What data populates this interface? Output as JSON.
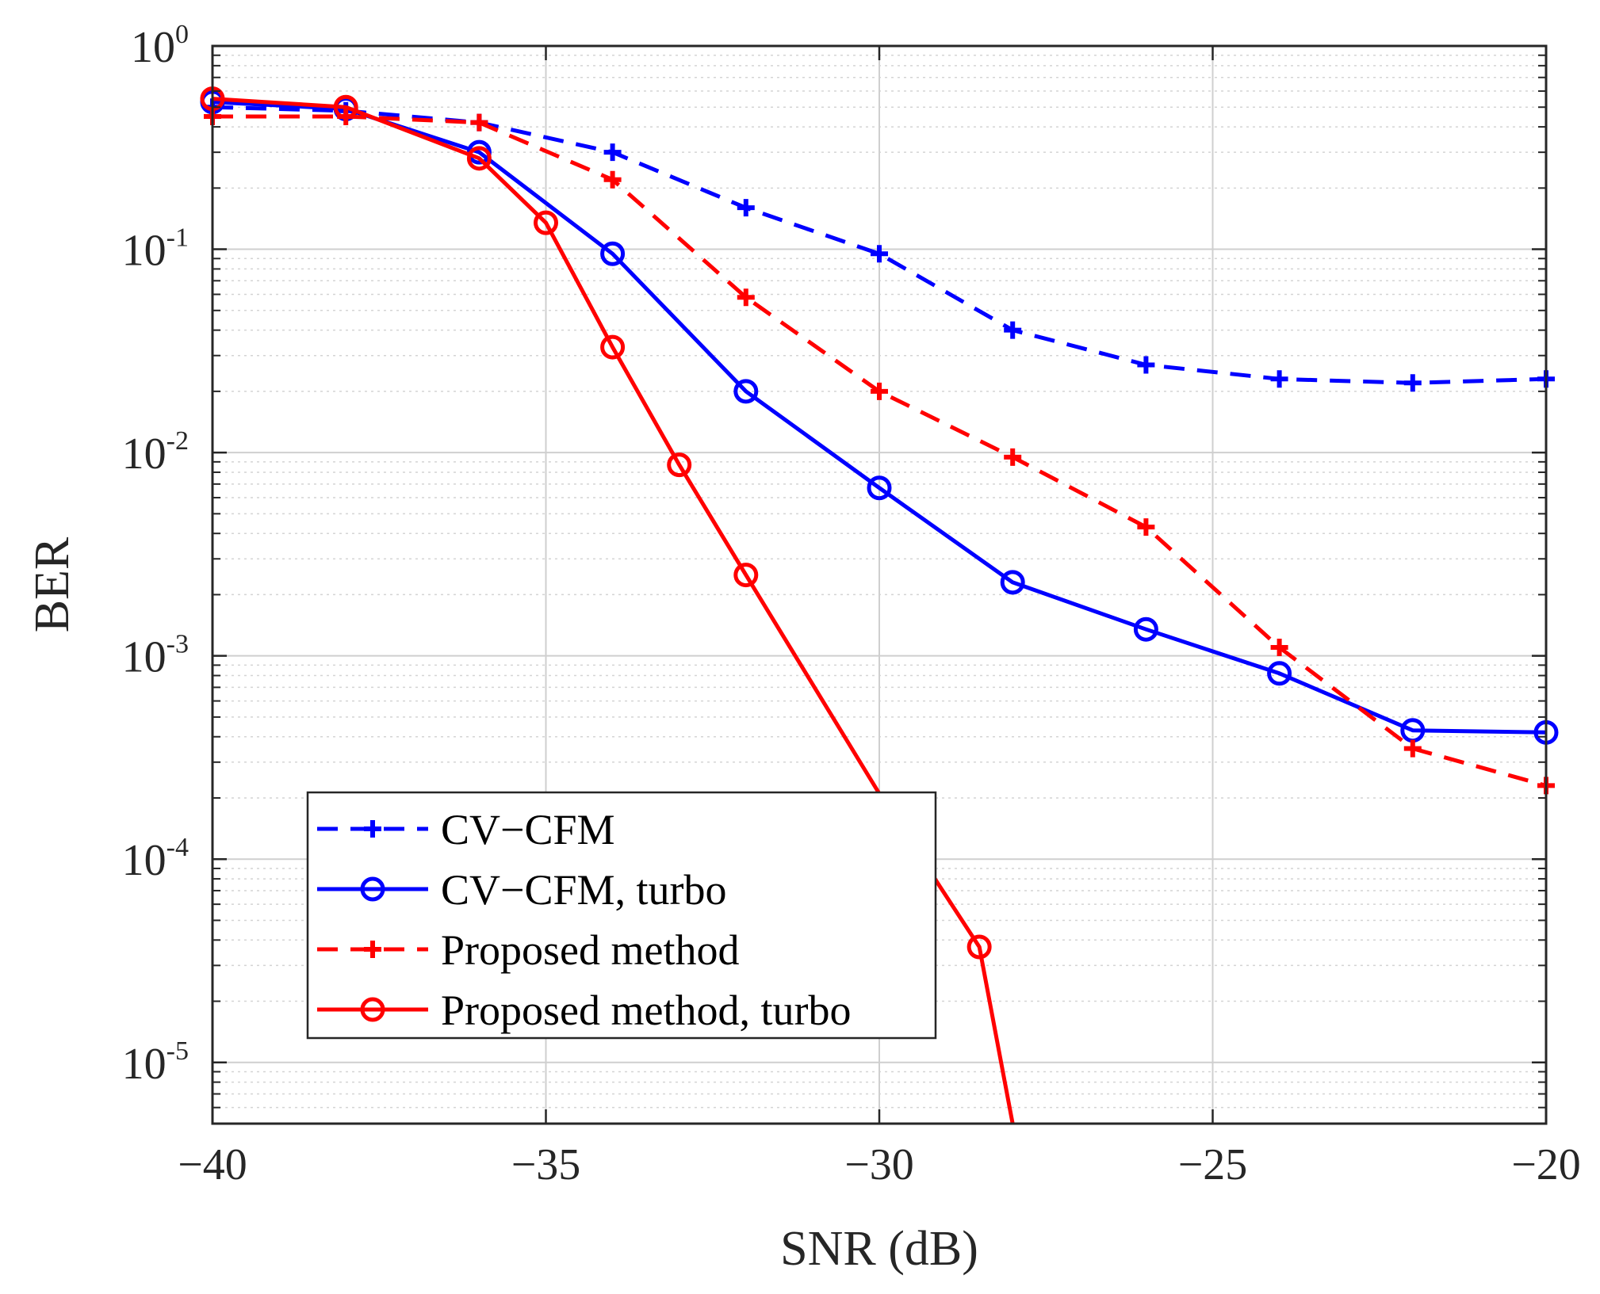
{
  "chart_data": {
    "type": "line",
    "title": "",
    "xlabel": "SNR (dB)",
    "ylabel": "BER",
    "x_scale": "linear",
    "y_scale": "log",
    "xlim": [
      -40,
      -20
    ],
    "ylim": [
      5e-06,
      1
    ],
    "grid": true,
    "legend_position": "bottom-left",
    "x_ticks": [
      {
        "value": -40,
        "label": "−40"
      },
      {
        "value": -35,
        "label": "−35"
      },
      {
        "value": -30,
        "label": "−30"
      },
      {
        "value": -25,
        "label": "−25"
      },
      {
        "value": -20,
        "label": "−20"
      }
    ],
    "y_ticks": [
      {
        "exp": 0,
        "base": "10",
        "sup": "0"
      },
      {
        "exp": -1,
        "base": "10",
        "sup": "-1"
      },
      {
        "exp": -2,
        "base": "10",
        "sup": "-2"
      },
      {
        "exp": -3,
        "base": "10",
        "sup": "-3"
      },
      {
        "exp": -4,
        "base": "10",
        "sup": "-4"
      },
      {
        "exp": -5,
        "base": "10",
        "sup": "-5"
      }
    ],
    "series": [
      {
        "name": "CV−CFM",
        "color": "#0000ff",
        "line_style": "dashed",
        "marker": "plus",
        "x": [
          -40,
          -38,
          -36,
          -34,
          -32,
          -30,
          -28,
          -26,
          -24,
          -22,
          -20
        ],
        "y": [
          0.5,
          0.48,
          0.42,
          0.3,
          0.16,
          0.095,
          0.04,
          0.027,
          0.023,
          0.022,
          0.023
        ]
      },
      {
        "name": "CV−CFM, turbo",
        "color": "#0000ff",
        "line_style": "solid",
        "marker": "circle",
        "x": [
          -40,
          -38,
          -36,
          -34,
          -32,
          -30,
          -28,
          -26,
          -24,
          -22,
          -20
        ],
        "y": [
          0.53,
          0.49,
          0.3,
          0.095,
          0.02,
          0.0067,
          0.0023,
          0.00135,
          0.00082,
          0.00043,
          0.00042
        ]
      },
      {
        "name": "Proposed method",
        "color": "#ff0000",
        "line_style": "dashed",
        "marker": "plus",
        "x": [
          -40,
          -38,
          -36,
          -34,
          -32,
          -30,
          -28,
          -26,
          -24,
          -22,
          -20
        ],
        "y": [
          0.45,
          0.45,
          0.42,
          0.22,
          0.058,
          0.02,
          0.0095,
          0.0043,
          0.0011,
          0.00035,
          0.00023
        ]
      },
      {
        "name": "Proposed method, turbo",
        "color": "#ff0000",
        "line_style": "solid",
        "marker": "circle",
        "x": [
          -40,
          -38,
          -36,
          -35,
          -34,
          -33,
          -32,
          -30,
          -28.5,
          -28
        ],
        "y": [
          0.55,
          0.5,
          0.28,
          0.135,
          0.033,
          0.0087,
          0.0025,
          0.00021,
          3.7e-05,
          5e-06
        ],
        "marker_skip": [
          7,
          9
        ]
      }
    ]
  }
}
